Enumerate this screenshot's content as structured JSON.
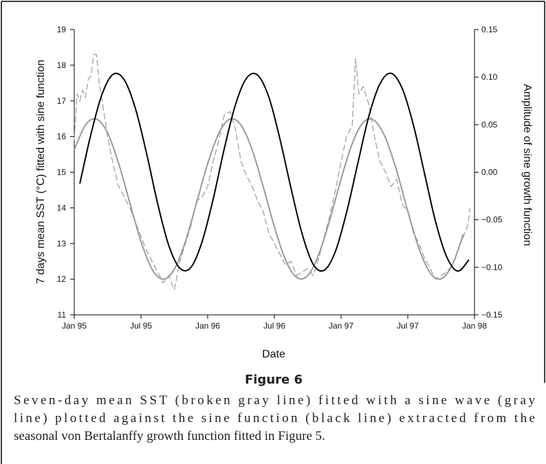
{
  "chart_data": {
    "type": "line",
    "y_label": "7 days mean SST (°C) fitted with sine function",
    "y2_label": "Amplitude of sine growth function",
    "x_label": "Date",
    "figure_label": "Figure 6",
    "caption": [
      "Seven-day mean SST (broken gray line) fitted with a sine wave (gray",
      "line) plotted against the sine function (black line) extracted from the",
      "seasonal von Bertalanffy growth function fitted in Figure 5."
    ],
    "xlim": [
      0,
      36
    ],
    "xticks": [
      {
        "value": 0,
        "label": "Jan 95"
      },
      {
        "value": 6,
        "label": "Jul 95"
      },
      {
        "value": 12,
        "label": "Jan 96"
      },
      {
        "value": 18,
        "label": "Jul 96"
      },
      {
        "value": 24,
        "label": "Jan 97"
      },
      {
        "value": 30,
        "label": "Jul 97"
      },
      {
        "value": 36,
        "label": "Jan 98"
      }
    ],
    "ylim": [
      11,
      19
    ],
    "yticks": [
      11,
      12,
      13,
      14,
      15,
      16,
      17,
      18,
      19
    ],
    "y2lim": [
      -0.15,
      0.15
    ],
    "y2ticks": [
      {
        "value": -0.15,
        "label": "−0.15"
      },
      {
        "value": -0.1,
        "label": "−0.10"
      },
      {
        "value": -0.05,
        "label": "−0.05"
      },
      {
        "value": 0,
        "label": "0.00"
      },
      {
        "value": 0.05,
        "label": "0.05"
      },
      {
        "value": 0.1,
        "label": "0.10"
      },
      0.15
    ],
    "series": [
      {
        "color": "#a0a0a0",
        "style": "dashed",
        "x": [
          0,
          0.25,
          0.5,
          0.75,
          1,
          1.25,
          1.5,
          1.75,
          2,
          2.25,
          2.5,
          2.75,
          3,
          3.5,
          4,
          4.5,
          5,
          5.5,
          6,
          6.5,
          7,
          7.5,
          8,
          8.5,
          9,
          9.5,
          10,
          10.5,
          11,
          11.5,
          12,
          12.5,
          13,
          13.5,
          14,
          14.5,
          15,
          15.5,
          16,
          16.5,
          17,
          17.5,
          18,
          18.5,
          19,
          19.5,
          20,
          20.5,
          21,
          21.5,
          22,
          22.5,
          23,
          23.5,
          24,
          24.5,
          25,
          25.3,
          25.6,
          26,
          26.5,
          27,
          27.5,
          28,
          28.5,
          29,
          29.5,
          30,
          30.5,
          31,
          31.5,
          32,
          32.5,
          33,
          33.5,
          34,
          34.5,
          35,
          35.4,
          35.6
        ],
        "values": [
          15.9,
          17.2,
          17.0,
          17.3,
          17.1,
          17.6,
          17.7,
          18.3,
          18.3,
          17.5,
          17.0,
          16.5,
          16.0,
          15.2,
          14.6,
          14.3,
          14.0,
          13.6,
          13.2,
          12.8,
          12.5,
          12.2,
          11.9,
          12.1,
          11.7,
          12.5,
          13.0,
          13.5,
          14.2,
          14.3,
          14.6,
          15.3,
          15.9,
          16.6,
          16.7,
          16.2,
          15.3,
          14.9,
          14.6,
          14.2,
          13.9,
          13.3,
          13.0,
          12.7,
          12.4,
          12.5,
          12.1,
          12.2,
          12.3,
          12.1,
          12.6,
          13.2,
          13.8,
          14.5,
          15.3,
          16.0,
          16.3,
          18.2,
          17.2,
          17.4,
          16.9,
          16.0,
          15.3,
          15.0,
          14.6,
          14.8,
          14.1,
          13.9,
          13.3,
          13.0,
          12.6,
          12.3,
          12.0,
          12.1,
          12.2,
          12.4,
          12.8,
          13.2,
          13.5,
          14.0
        ]
      },
      {
        "color": "#999999",
        "style": "smooth",
        "x": [
          0,
          1,
          2,
          3,
          4,
          5,
          6,
          7,
          8,
          9,
          10,
          11,
          12,
          13,
          14,
          15,
          16,
          17,
          18,
          19,
          20,
          21,
          22,
          23,
          24,
          25,
          26,
          27,
          28,
          29,
          30,
          31,
          32,
          33,
          34,
          35
        ],
        "values": [
          15.63,
          16.32,
          16.49,
          16.1,
          15.24,
          14.14,
          13.06,
          12.28,
          12.0,
          12.28,
          13.06,
          14.14,
          15.24,
          16.09,
          16.49,
          16.32,
          15.63,
          14.59,
          13.47,
          12.54,
          12.05,
          12.1,
          12.7,
          13.68,
          14.81,
          15.8,
          16.4,
          16.45,
          15.96,
          15.04,
          13.91,
          12.87,
          12.18,
          12.01,
          12.4,
          13.26
        ]
      },
      {
        "color": "#000000",
        "style": "smooth",
        "axis": "y2",
        "x": [
          0.5,
          1.5,
          2.5,
          3.5,
          4.5,
          5.5,
          6.5,
          7.5,
          8.5,
          9.5,
          10.5,
          11.5,
          12.5,
          13.5,
          14.5,
          15.5,
          16.5,
          17.5,
          18.5,
          19.5,
          20.5,
          21.5,
          22.5,
          23.5,
          24.5,
          25.5,
          26.5,
          27.5,
          28.5,
          29.5,
          30.5,
          31.5,
          32.5,
          33.5,
          34.5,
          35.5
        ],
        "values": [
          -0.012,
          0.04,
          0.082,
          0.103,
          0.097,
          0.067,
          0.02,
          -0.033,
          -0.077,
          -0.101,
          -0.1,
          -0.073,
          -0.028,
          0.025,
          0.071,
          0.099,
          0.102,
          0.079,
          0.035,
          -0.017,
          -0.065,
          -0.097,
          -0.103,
          -0.083,
          -0.042,
          0.009,
          0.059,
          0.093,
          0.104,
          0.088,
          0.05,
          -0.001,
          -0.052,
          -0.089,
          -0.104,
          -0.092
        ]
      }
    ]
  }
}
